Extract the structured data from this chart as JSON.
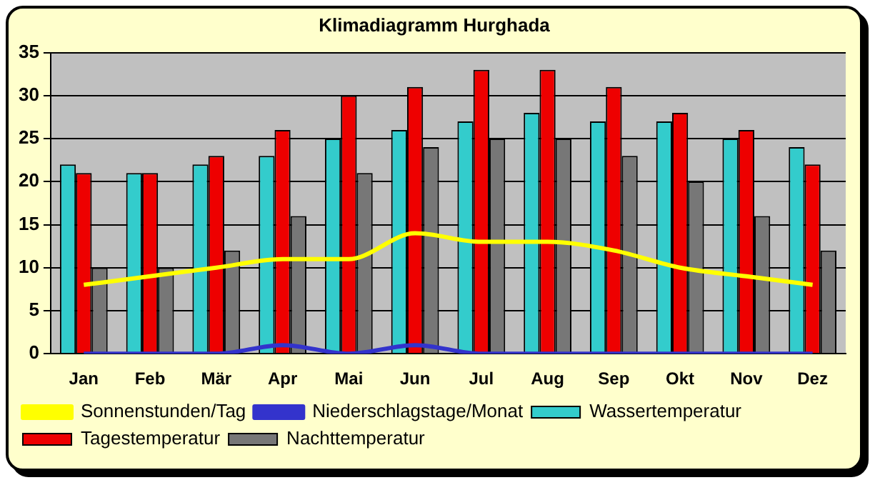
{
  "chart_data": {
    "type": "bar",
    "title": "Klimadiagramm Hurghada",
    "categories": [
      "Jan",
      "Feb",
      "Mär",
      "Apr",
      "Mai",
      "Jun",
      "Jul",
      "Aug",
      "Sep",
      "Okt",
      "Nov",
      "Dez"
    ],
    "series": [
      {
        "name": "Wassertemperatur",
        "color": "#33cccc",
        "values": [
          22,
          21,
          22,
          23,
          25,
          26,
          27,
          28,
          27,
          27,
          25,
          24
        ]
      },
      {
        "name": "Tagestemperatur",
        "color": "#ee0000",
        "values": [
          21,
          21,
          23,
          26,
          30,
          31,
          33,
          33,
          31,
          28,
          26,
          22
        ]
      },
      {
        "name": "Nachttemperatur",
        "color": "#777777",
        "values": [
          10,
          10,
          12,
          16,
          21,
          24,
          25,
          25,
          23,
          20,
          16,
          12
        ]
      },
      {
        "name": "Sonnenstunden/Tag",
        "type": "line",
        "color": "#ffff00",
        "values": [
          8,
          9,
          10,
          11,
          11,
          14,
          13,
          13,
          12,
          10,
          9,
          8
        ]
      },
      {
        "name": "Niederschlagstage/Monat",
        "type": "line",
        "color": "#3333cc",
        "values": [
          0,
          0,
          0,
          1,
          0,
          1,
          0,
          0,
          0,
          0,
          0,
          0
        ]
      }
    ],
    "ylim": [
      0,
      35
    ],
    "yticks": [
      0,
      5,
      10,
      15,
      20,
      25,
      30,
      35
    ],
    "grid": "y",
    "legend": "bottom",
    "marker": "none",
    "line_style": "solid"
  }
}
